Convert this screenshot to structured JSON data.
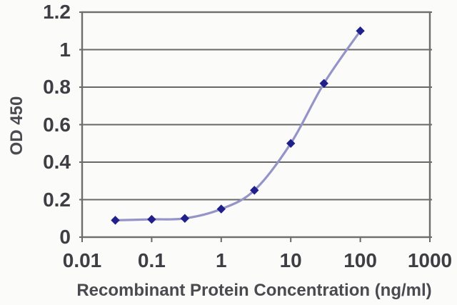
{
  "chart_data": {
    "type": "line",
    "title": "",
    "xlabel": "Recombinant Protein Concentration (ng/ml)",
    "ylabel": "OD 450",
    "x_scale": "log",
    "xlim": [
      0.01,
      1000
    ],
    "ylim": [
      0,
      1.2
    ],
    "x_ticks": [
      {
        "value": 0.01,
        "label": "0.01"
      },
      {
        "value": 0.1,
        "label": "0.1"
      },
      {
        "value": 1,
        "label": "1"
      },
      {
        "value": 10,
        "label": "10"
      },
      {
        "value": 100,
        "label": "100"
      },
      {
        "value": 1000,
        "label": "1000"
      }
    ],
    "y_ticks": [
      {
        "value": 0,
        "label": "0"
      },
      {
        "value": 0.2,
        "label": "0.2"
      },
      {
        "value": 0.4,
        "label": "0.4"
      },
      {
        "value": 0.6,
        "label": "0.6"
      },
      {
        "value": 0.8,
        "label": "0.8"
      },
      {
        "value": 1,
        "label": "1"
      },
      {
        "value": 1.2,
        "label": "1.2"
      }
    ],
    "grid": "horizontal",
    "legend": "none",
    "series": [
      {
        "name": "OD 450",
        "marker": "diamond",
        "smooth": true,
        "x": [
          0.03,
          0.1,
          0.3,
          1,
          3,
          10,
          30,
          100
        ],
        "y": [
          0.09,
          0.095,
          0.1,
          0.15,
          0.25,
          0.5,
          0.82,
          1.1
        ]
      }
    ]
  },
  "colors": {
    "background": "#fbfbf9",
    "grid": "#686868",
    "axis_border": "#6e6e6e",
    "tick_text": "#3e3e44",
    "title_text": "#4a4a50",
    "line": "#9494c8",
    "marker": "#20208c"
  }
}
